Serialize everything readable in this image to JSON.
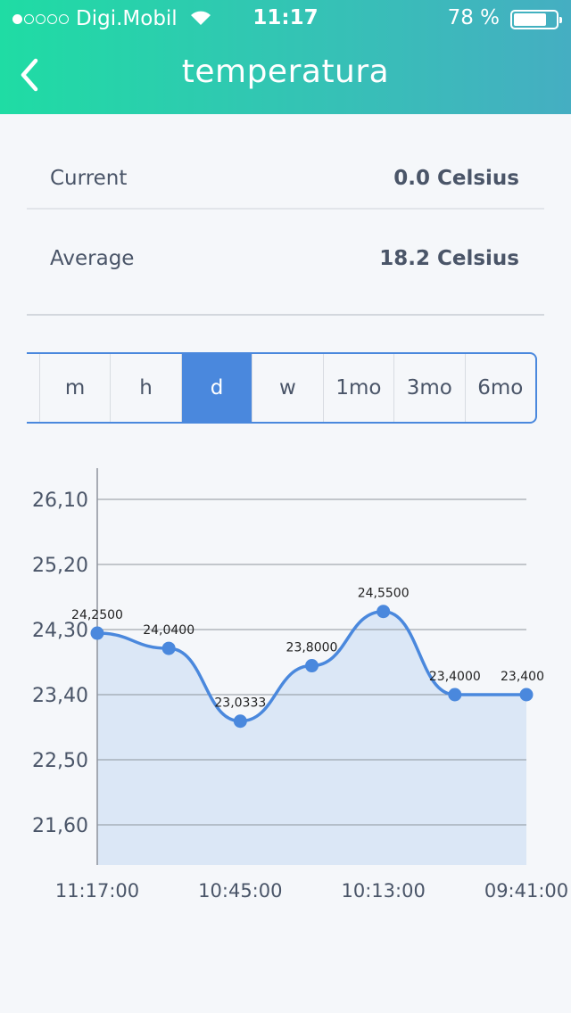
{
  "status_bar": {
    "carrier": "Digi.Mobil",
    "signal_filled": 1,
    "signal_total": 5,
    "time": "11:17",
    "battery": "78 %",
    "battery_level": 0.78
  },
  "header": {
    "title": "temperatura",
    "back_icon": "chevron-left-icon"
  },
  "stats": [
    {
      "label": "Current",
      "value": "0.0 Celsius"
    },
    {
      "label": "Average",
      "value": "18.2 Celsius"
    }
  ],
  "range_selector": {
    "options": [
      "",
      "m",
      "h",
      "d",
      "w",
      "1mo",
      "3mo",
      "6mo"
    ],
    "selected": "d"
  },
  "colors": {
    "accent": "#4a88dd",
    "fill": "#dbe7f6",
    "grid": "#8e949c",
    "text": "#4a5568"
  },
  "chart_data": {
    "type": "area",
    "ylim": [
      21.0,
      26.45
    ],
    "y_ticks": [
      26.1,
      25.2,
      24.3,
      23.4,
      22.5,
      21.6
    ],
    "y_tick_labels": [
      "26,10",
      "25,20",
      "24,30",
      "23,40",
      "22,50",
      "21,60"
    ],
    "x_tick_labels": [
      "11:17:00",
      "10:45:00",
      "10:13:00",
      "09:41:00"
    ],
    "x_tick_positions": [
      0,
      2,
      4,
      6
    ],
    "points": [
      {
        "label": "24,2500",
        "y": 24.25
      },
      {
        "label": "24,0400",
        "y": 24.04
      },
      {
        "label": "23,0333",
        "y": 23.0333
      },
      {
        "label": "23,8000",
        "y": 23.8
      },
      {
        "label": "24,5500",
        "y": 24.55
      },
      {
        "label": "23,4000",
        "y": 23.4
      },
      {
        "label": "23,400",
        "y": 23.4
      }
    ]
  }
}
